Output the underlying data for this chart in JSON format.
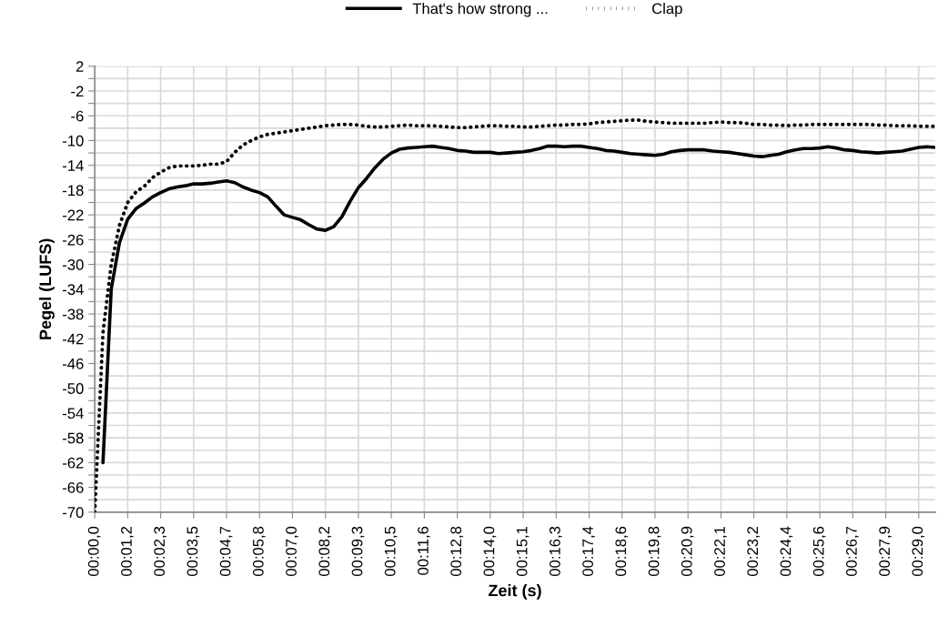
{
  "chart_data": {
    "type": "line",
    "xlabel": "Zeit (s)",
    "ylabel": "Pegel (LUFS)",
    "categories": [
      "00:00,0",
      null,
      null,
      null,
      "00:01,2",
      null,
      null,
      null,
      "00:02,3",
      null,
      null,
      null,
      "00:03,5",
      null,
      null,
      null,
      "00:04,7",
      null,
      null,
      null,
      "00:05,8",
      null,
      null,
      null,
      "00:07,0",
      null,
      null,
      null,
      "00:08,2",
      null,
      null,
      null,
      "00:09,3",
      null,
      null,
      null,
      "00:10,5",
      null,
      null,
      null,
      "00:11,6",
      null,
      null,
      null,
      "00:12,8",
      null,
      null,
      null,
      "00:14,0",
      null,
      null,
      null,
      "00:15,1",
      null,
      null,
      null,
      "00:16,3",
      null,
      null,
      null,
      "00:17,4",
      null,
      null,
      null,
      "00:18,6",
      null,
      null,
      null,
      "00:19,8",
      null,
      null,
      null,
      "00:20,9",
      null,
      null,
      null,
      "00:22,1",
      null,
      null,
      null,
      "00:23,2",
      null,
      null,
      null,
      "00:24,4",
      null,
      null,
      null,
      "00:25,6",
      null,
      null,
      null,
      "00:26,7",
      null,
      null,
      null,
      "00:27,9",
      null,
      null,
      null,
      "00:29,0",
      null,
      null
    ],
    "series": [
      {
        "name": "That's how strong ...",
        "color": "#000000",
        "line_style": "solid",
        "values": [
          null,
          -62,
          -34,
          -26.5,
          -22.7,
          -21.0,
          -20.1,
          -19.1,
          -18.4,
          -17.8,
          -17.5,
          -17.3,
          -17.0,
          -17.0,
          -16.9,
          -16.7,
          -16.5,
          -16.8,
          -17.5,
          -18.0,
          -18.4,
          -19.1,
          -20.6,
          -22.0,
          -22.4,
          -22.8,
          -23.6,
          -24.3,
          -24.5,
          -23.9,
          -22.3,
          -19.8,
          -17.6,
          -16.1,
          -14.4,
          -13.0,
          -12.0,
          -11.4,
          -11.2,
          -11.1,
          -11.0,
          -10.9,
          -11.1,
          -11.3,
          -11.6,
          -11.7,
          -11.9,
          -11.9,
          -11.9,
          -12.1,
          -12.0,
          -11.9,
          -11.8,
          -11.6,
          -11.3,
          -10.9,
          -10.9,
          -11.0,
          -10.9,
          -10.9,
          -11.1,
          -11.3,
          -11.6,
          -11.7,
          -11.9,
          -12.1,
          -12.2,
          -12.3,
          -12.4,
          -12.2,
          -11.8,
          -11.6,
          -11.5,
          -11.5,
          -11.5,
          -11.7,
          -11.8,
          -11.9,
          -12.1,
          -12.3,
          -12.5,
          -12.6,
          -12.4,
          -12.2,
          -11.8,
          -11.5,
          -11.3,
          -11.3,
          -11.2,
          -11.0,
          -11.2,
          -11.5,
          -11.6,
          -11.8,
          -11.9,
          -12.0,
          -11.9,
          -11.8,
          -11.7,
          -11.4,
          -11.1,
          -11.0,
          -11.1
        ]
      },
      {
        "name": "Clap",
        "color": "#000000",
        "line_style": "dotted",
        "values": [
          -70,
          -41,
          -30.0,
          -23.7,
          -20.0,
          -18.3,
          -17.4,
          -16.0,
          -15.1,
          -14.4,
          -14.1,
          -14.1,
          -14.1,
          -14.0,
          -13.8,
          -13.8,
          -13.4,
          -11.9,
          -10.7,
          -10.0,
          -9.4,
          -9.0,
          -8.8,
          -8.6,
          -8.4,
          -8.2,
          -8.0,
          -7.8,
          -7.6,
          -7.5,
          -7.4,
          -7.4,
          -7.5,
          -7.7,
          -7.8,
          -7.8,
          -7.7,
          -7.6,
          -7.5,
          -7.6,
          -7.6,
          -7.6,
          -7.7,
          -7.8,
          -7.9,
          -7.9,
          -7.8,
          -7.7,
          -7.6,
          -7.6,
          -7.7,
          -7.7,
          -7.8,
          -7.8,
          -7.7,
          -7.6,
          -7.5,
          -7.5,
          -7.4,
          -7.4,
          -7.3,
          -7.1,
          -7.0,
          -6.9,
          -6.8,
          -6.7,
          -6.7,
          -6.9,
          -7.0,
          -7.1,
          -7.2,
          -7.2,
          -7.2,
          -7.2,
          -7.2,
          -7.1,
          -7.0,
          -7.1,
          -7.1,
          -7.2,
          -7.4,
          -7.4,
          -7.5,
          -7.5,
          -7.6,
          -7.5,
          -7.5,
          -7.4,
          -7.4,
          -7.4,
          -7.4,
          -7.4,
          -7.4,
          -7.4,
          -7.4,
          -7.5,
          -7.5,
          -7.6,
          -7.6,
          -7.6,
          -7.7,
          -7.7,
          -7.7
        ]
      }
    ],
    "ylim": [
      -70,
      2
    ],
    "yticks": [
      -70,
      {
        "value": -68,
        "label": null
      },
      -66,
      {
        "value": -64,
        "label": null
      },
      -62,
      {
        "value": -60,
        "label": null
      },
      -58,
      {
        "value": -56,
        "label": null
      },
      -54,
      {
        "value": -52,
        "label": null
      },
      -50,
      {
        "value": -48,
        "label": null
      },
      -46,
      {
        "value": -44,
        "label": null
      },
      -42,
      {
        "value": -40,
        "label": null
      },
      -38,
      {
        "value": -36,
        "label": null
      },
      -34,
      {
        "value": -32,
        "label": null
      },
      -30,
      {
        "value": -28,
        "label": null
      },
      -26,
      {
        "value": -24,
        "label": null
      },
      -22,
      {
        "value": -20,
        "label": null
      },
      -18,
      {
        "value": -16,
        "label": null
      },
      -14,
      {
        "value": -12,
        "label": null
      },
      -10,
      {
        "value": -8,
        "label": null
      },
      -6,
      {
        "value": -4,
        "label": null
      },
      -2,
      {
        "value": 0,
        "label": null
      },
      2
    ],
    "grid": true,
    "legend": "top",
    "marker": "none"
  }
}
